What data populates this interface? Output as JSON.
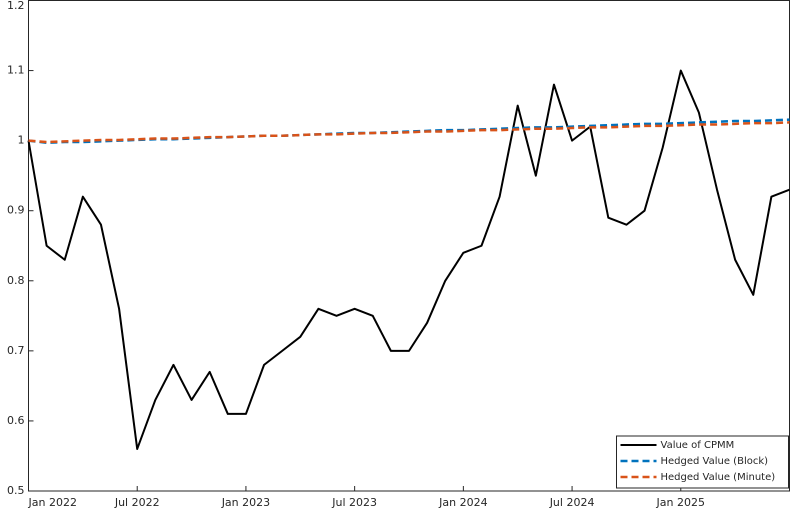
{
  "chart_data": {
    "type": "line",
    "x": [
      "2022-01",
      "2022-02",
      "2022-03",
      "2022-04",
      "2022-05",
      "2022-06",
      "2022-07",
      "2022-08",
      "2022-09",
      "2022-10",
      "2022-11",
      "2022-12",
      "2023-01",
      "2023-02",
      "2023-03",
      "2023-04",
      "2023-05",
      "2023-06",
      "2023-07",
      "2023-08",
      "2023-09",
      "2023-10",
      "2023-11",
      "2023-12",
      "2024-01",
      "2024-02",
      "2024-03",
      "2024-04",
      "2024-05",
      "2024-06",
      "2024-07",
      "2024-08",
      "2024-09",
      "2024-10",
      "2024-11",
      "2024-12",
      "2025-01",
      "2025-02",
      "2025-03",
      "2025-04",
      "2025-05",
      "2025-06",
      "2025-07"
    ],
    "series": [
      {
        "name": "Value of CPMM",
        "color": "#000000",
        "dash": false,
        "values": [
          1.0,
          0.85,
          0.83,
          0.92,
          0.88,
          0.76,
          0.56,
          0.63,
          0.68,
          0.63,
          0.67,
          0.61,
          0.61,
          0.68,
          0.7,
          0.72,
          0.76,
          0.75,
          0.76,
          0.75,
          0.7,
          0.7,
          0.74,
          0.8,
          0.84,
          0.85,
          0.92,
          1.05,
          0.95,
          1.08,
          1.0,
          1.02,
          0.89,
          0.88,
          0.9,
          0.99,
          1.1,
          1.04,
          0.93,
          0.83,
          0.78,
          0.92,
          0.93
        ]
      },
      {
        "name": "Hedged Value (Block)",
        "color": "#0072BD",
        "dash": true,
        "values": [
          1.0,
          0.997,
          0.998,
          0.998,
          0.999,
          1.0,
          1.001,
          1.002,
          1.002,
          1.003,
          1.004,
          1.005,
          1.006,
          1.007,
          1.007,
          1.008,
          1.009,
          1.01,
          1.011,
          1.011,
          1.012,
          1.013,
          1.014,
          1.015,
          1.015,
          1.016,
          1.017,
          1.018,
          1.019,
          1.019,
          1.02,
          1.021,
          1.022,
          1.023,
          1.024,
          1.024,
          1.025,
          1.026,
          1.027,
          1.028,
          1.028,
          1.029,
          1.03
        ]
      },
      {
        "name": "Hedged Value (Minute)",
        "color": "#D95319",
        "dash": true,
        "values": [
          1.0,
          0.998,
          0.999,
          1.0,
          1.001,
          1.001,
          1.002,
          1.003,
          1.003,
          1.004,
          1.005,
          1.005,
          1.006,
          1.007,
          1.007,
          1.008,
          1.009,
          1.009,
          1.01,
          1.011,
          1.011,
          1.012,
          1.013,
          1.013,
          1.014,
          1.015,
          1.015,
          1.016,
          1.017,
          1.017,
          1.018,
          1.019,
          1.019,
          1.02,
          1.021,
          1.021,
          1.022,
          1.023,
          1.023,
          1.024,
          1.025,
          1.025,
          1.026
        ]
      }
    ],
    "xlim": [
      "2022-01",
      "2025-07"
    ],
    "xticks": [
      {
        "value": "2022-01",
        "label": "Jan 2022"
      },
      {
        "value": "2022-07",
        "label": "Jul 2022"
      },
      {
        "value": "2023-01",
        "label": "Jan 2023"
      },
      {
        "value": "2023-07",
        "label": "Jul 2023"
      },
      {
        "value": "2024-01",
        "label": "Jan 2024"
      },
      {
        "value": "2024-07",
        "label": "Jul 2024"
      },
      {
        "value": "2025-01",
        "label": "Jan 2025"
      }
    ],
    "ylim": [
      0.5,
      1.2
    ],
    "yticks": [
      0.5,
      0.6,
      0.7,
      0.8,
      0.9,
      1,
      1.1,
      1.2
    ],
    "legend": "lower right",
    "grid": false
  }
}
